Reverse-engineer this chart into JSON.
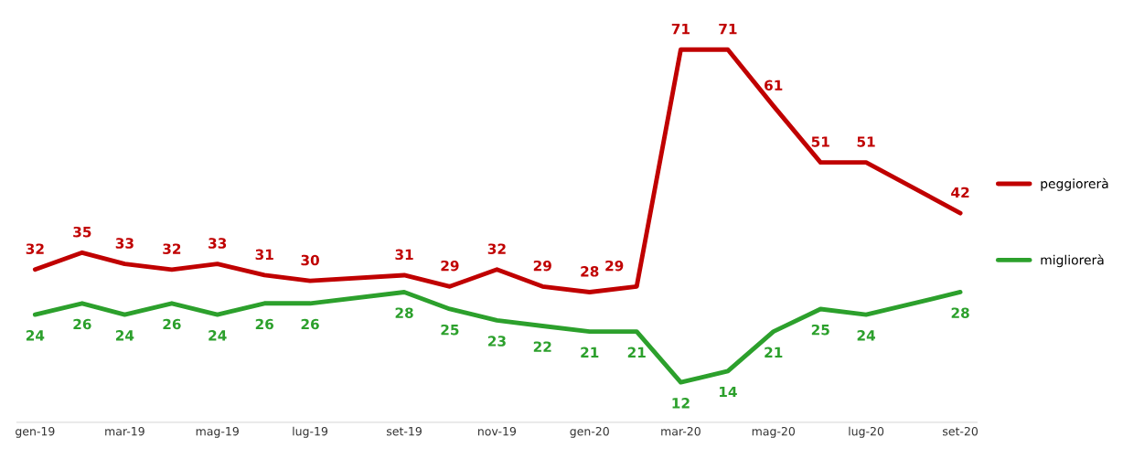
{
  "chart_data": {
    "type": "line",
    "x": [
      "2019-01",
      "2019-02",
      "2019-03",
      "2019-04",
      "2019-05",
      "2019-06",
      "2019-07",
      "2019-08",
      "2019-09",
      "2019-10",
      "2019-11",
      "2019-12",
      "2020-01",
      "2020-02",
      "2020-03",
      "2020-04",
      "2020-05",
      "2020-06",
      "2020-07",
      "2020-08",
      "2020-09"
    ],
    "xticks": [
      {
        "value": "2019-01",
        "label": "gen-19"
      },
      {
        "value": "2019-03",
        "label": "mar-19"
      },
      {
        "value": "2019-05",
        "label": "mag-19"
      },
      {
        "value": "2019-07",
        "label": "lug-19"
      },
      {
        "value": "2019-09",
        "label": "set-19"
      },
      {
        "value": "2019-11",
        "label": "nov-19"
      },
      {
        "value": "2020-01",
        "label": "gen-20"
      },
      {
        "value": "2020-03",
        "label": "mar-20"
      },
      {
        "value": "2020-05",
        "label": "mag-20"
      },
      {
        "value": "2020-07",
        "label": "lug-20"
      },
      {
        "value": "2020-09",
        "label": "set-20"
      }
    ],
    "series": [
      {
        "name": "peggiorerà",
        "color": "#c00000",
        "values": [
          32,
          35,
          33,
          32,
          33,
          31,
          30,
          null,
          31,
          29,
          32,
          29,
          28,
          29,
          71,
          71,
          61,
          51,
          51,
          null,
          42
        ]
      },
      {
        "name": "migliorerà",
        "color": "#2ca02c",
        "values": [
          24,
          26,
          24,
          26,
          24,
          26,
          26,
          null,
          28,
          25,
          23,
          22,
          21,
          21,
          12,
          14,
          21,
          25,
          24,
          null,
          28
        ]
      }
    ],
    "xlim": [
      "2018-12-20",
      "2020-09-12"
    ],
    "data_labels": true,
    "legend": "right",
    "tick_labels": "x",
    "grid": false,
    "line_style": "solid",
    "marker": "none"
  }
}
